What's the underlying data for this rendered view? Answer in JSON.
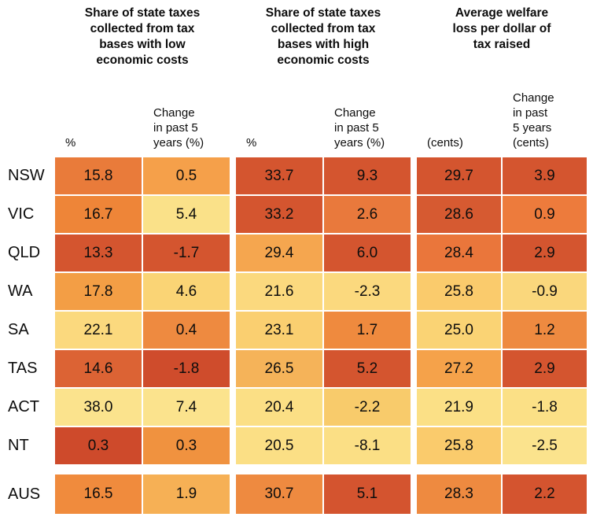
{
  "chart_data": {
    "type": "heatmap",
    "description": "Table of state tax measures shaded from pale yellow (better) to dark red (worse)",
    "column_groups": [
      {
        "title": "Share of state taxes collected from tax bases with low economic costs",
        "title_lines": [
          "Share of state taxes",
          "collected from tax",
          "bases with low",
          "economic costs"
        ],
        "sub_columns": [
          {
            "label": "%",
            "lines": [
              "%"
            ]
          },
          {
            "label": "Change in past 5 years (%)",
            "lines": [
              "Change",
              "in past 5",
              "years (%)"
            ]
          }
        ]
      },
      {
        "title": "Share of state taxes collected from tax bases with high economic costs",
        "title_lines": [
          "Share of state taxes",
          "collected from tax",
          "bases with high",
          "economic costs"
        ],
        "sub_columns": [
          {
            "label": "%",
            "lines": [
              "%"
            ]
          },
          {
            "label": "Change in past 5 years (%)",
            "lines": [
              "Change",
              "in past 5",
              "years (%)"
            ]
          }
        ]
      },
      {
        "title": "Average welfare loss per dollar of tax raised",
        "title_lines": [
          "Average welfare",
          "loss per dollar of",
          "tax raised"
        ],
        "sub_columns": [
          {
            "label": "(cents)",
            "lines": [
              "(cents)"
            ]
          },
          {
            "label": "Change in past 5 years (cents)",
            "lines": [
              "Change",
              "in past",
              "5 years",
              "(cents)"
            ]
          }
        ]
      }
    ],
    "rows": [
      {
        "label": "NSW",
        "separated": false,
        "values": [
          "15.8",
          "0.5",
          "33.7",
          "9.3",
          "29.7",
          "3.9"
        ],
        "cell_colors": [
          "#E97B3A",
          "#F5A04A",
          "#D4552F",
          "#D4552F",
          "#D4552F",
          "#D4552F"
        ]
      },
      {
        "label": "VIC",
        "separated": false,
        "values": [
          "16.7",
          "5.4",
          "33.2",
          "2.6",
          "28.6",
          "0.9"
        ],
        "cell_colors": [
          "#EE8538",
          "#FAE189",
          "#D4552F",
          "#E9793C",
          "#D65A31",
          "#ED7B3C"
        ]
      },
      {
        "label": "QLD",
        "separated": false,
        "values": [
          "13.3",
          "-1.7",
          "29.4",
          "6.0",
          "28.4",
          "2.9"
        ],
        "cell_colors": [
          "#D4552F",
          "#D4552F",
          "#F5A64F",
          "#D4552F",
          "#EA763B",
          "#D4552F"
        ]
      },
      {
        "label": "WA",
        "separated": false,
        "values": [
          "17.8",
          "4.6",
          "21.6",
          "-2.3",
          "25.8",
          "-0.9"
        ],
        "cell_colors": [
          "#F39E45",
          "#FAD475",
          "#FBD97E",
          "#FBD97E",
          "#FACB6C",
          "#FAD77C"
        ]
      },
      {
        "label": "SA",
        "separated": false,
        "values": [
          "22.1",
          "0.4",
          "23.1",
          "1.7",
          "25.0",
          "1.2"
        ],
        "cell_colors": [
          "#FBD97E",
          "#EE8A40",
          "#FACF70",
          "#EF8A3E",
          "#FAD374",
          "#EE8A40"
        ]
      },
      {
        "label": "TAS",
        "separated": false,
        "values": [
          "14.6",
          "-1.8",
          "26.5",
          "5.2",
          "27.2",
          "2.9"
        ],
        "cell_colors": [
          "#DC6334",
          "#CF4C2C",
          "#F5B359",
          "#D4552F",
          "#F5A24A",
          "#D4552F"
        ]
      },
      {
        "label": "ACT",
        "separated": false,
        "values": [
          "38.0",
          "7.4",
          "20.4",
          "-2.2",
          "21.9",
          "-1.8"
        ],
        "cell_colors": [
          "#FBE38D",
          "#FBE38D",
          "#FBDF85",
          "#F8CB6B",
          "#FBE086",
          "#FBE086"
        ]
      },
      {
        "label": "NT",
        "separated": false,
        "values": [
          "0.3",
          "0.3",
          "20.5",
          "-8.1",
          "25.8",
          "-2.5"
        ],
        "cell_colors": [
          "#CE4A2B",
          "#F0923F",
          "#FBDF85",
          "#FBDF85",
          "#FACB6C",
          "#FBE38D"
        ]
      },
      {
        "label": "AUS",
        "separated": true,
        "values": [
          "16.5",
          "1.9",
          "30.7",
          "5.1",
          "28.3",
          "2.2"
        ],
        "cell_colors": [
          "#F08B3D",
          "#F6B055",
          "#EE8A40",
          "#D4542F",
          "#EE8A40",
          "#D4542F"
        ]
      }
    ],
    "heat_scale": {
      "low_color": "#FBE38D",
      "high_color": "#CE4A2B"
    }
  }
}
